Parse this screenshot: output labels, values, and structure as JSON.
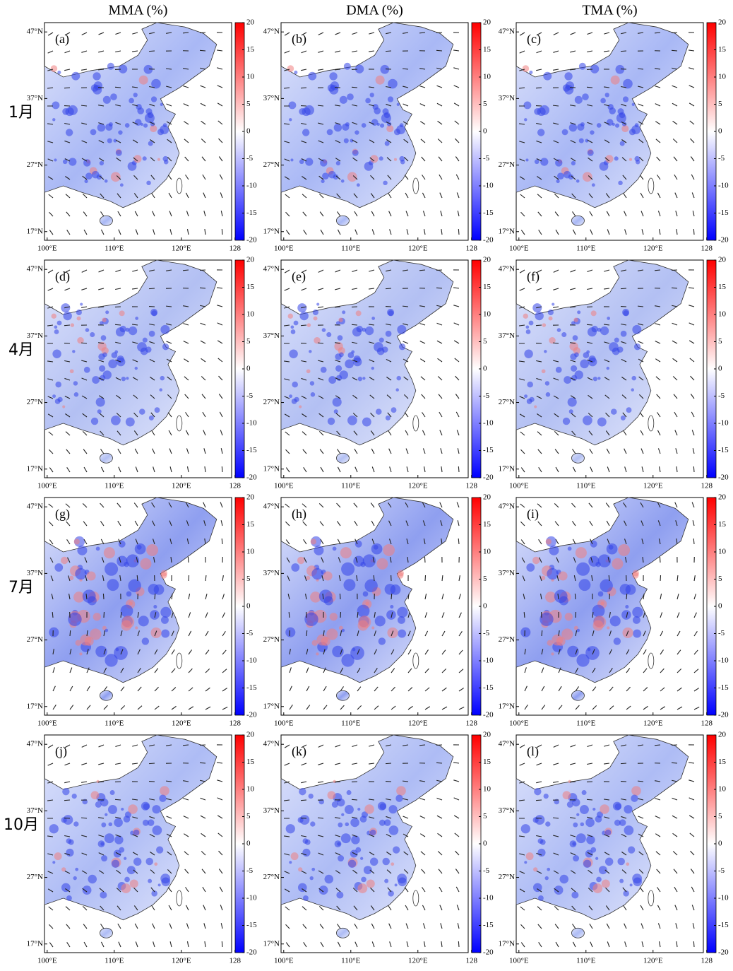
{
  "columns": [
    "MMA (%)",
    "DMA (%)",
    "TMA (%)"
  ],
  "rows": [
    "1月",
    "4月",
    "7月",
    "10月"
  ],
  "panels": [
    "(a)",
    "(b)",
    "(c)",
    "(d)",
    "(e)",
    "(f)",
    "(g)",
    "(h)",
    "(i)",
    "(j)",
    "(k)",
    "(l)"
  ],
  "lat_lim": [
    15.7,
    48.4
  ],
  "lat_ticks": [
    {
      "value": 47,
      "label": "47°N"
    },
    {
      "value": 37,
      "label": "37°N"
    },
    {
      "value": 27,
      "label": "27°N"
    },
    {
      "value": 17,
      "label": "17°N"
    }
  ],
  "lon_lim": [
    99.6,
    127.5
  ],
  "lon_ticks": [
    {
      "value": 100,
      "label": "100°E"
    },
    {
      "value": 110,
      "label": "110°E"
    },
    {
      "value": 120,
      "label": "120°E"
    },
    {
      "value": 128,
      "label": "128"
    }
  ],
  "colorbar": {
    "lim": [
      -20,
      20
    ],
    "ticks": [
      20,
      15,
      10,
      5,
      0,
      -5,
      -10,
      -15,
      -20
    ],
    "colors": [
      "#0000ff",
      "#ffffff",
      "#ff0000"
    ]
  }
}
